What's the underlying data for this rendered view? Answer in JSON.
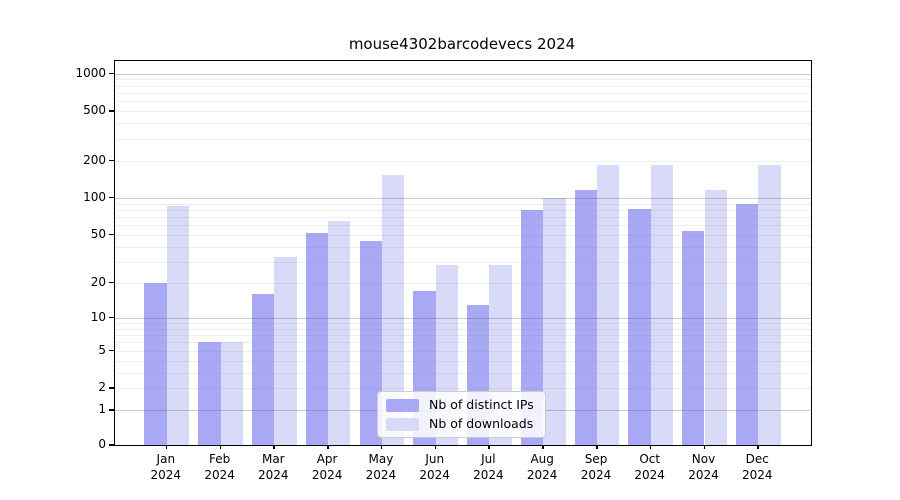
{
  "chart_data": {
    "type": "bar",
    "title": "mouse4302barcodevecs 2024",
    "x": {
      "months": [
        "Jan",
        "Feb",
        "Mar",
        "Apr",
        "May",
        "Jun",
        "Jul",
        "Aug",
        "Sep",
        "Oct",
        "Nov",
        "Dec"
      ],
      "year": "2024"
    },
    "categories": [
      "Jan 2024",
      "Feb 2024",
      "Mar 2024",
      "Apr 2024",
      "May 2024",
      "Jun 2024",
      "Jul 2024",
      "Aug 2024",
      "Sep 2024",
      "Oct 2024",
      "Nov 2024",
      "Dec 2024"
    ],
    "series": [
      {
        "name": "Nb of distinct IPs",
        "color": "#a8a8f5",
        "values": [
          20,
          6,
          16,
          52,
          45,
          17,
          13,
          80,
          115,
          82,
          54,
          89
        ]
      },
      {
        "name": "Nb of downloads",
        "color": "#d9d9f8",
        "values": [
          86,
          6,
          33,
          65,
          152,
          28,
          28,
          100,
          183,
          184,
          115,
          183
        ]
      }
    ],
    "y_axis": {
      "scale": "log1p",
      "ticks": [
        0,
        1,
        2,
        5,
        10,
        20,
        50,
        100,
        200,
        500,
        1000
      ],
      "range": [
        0,
        1200
      ]
    },
    "grid": {
      "major": [
        1,
        10,
        100,
        1000
      ],
      "minor": [
        2,
        3,
        4,
        5,
        6,
        7,
        8,
        9,
        20,
        30,
        40,
        50,
        60,
        70,
        80,
        90,
        200,
        300,
        400,
        500,
        600,
        700,
        800,
        900
      ],
      "orientation": "horizontal",
      "drawn_over_bars": true
    },
    "legend": {
      "location": "inside-bottom-center",
      "entries": [
        "Nb of distinct IPs",
        "Nb of downloads"
      ]
    },
    "colors": {
      "background": "#ffffff",
      "spine": "#000000",
      "major_grid": "#c9c9c9",
      "minor_grid": "#ececec"
    }
  }
}
